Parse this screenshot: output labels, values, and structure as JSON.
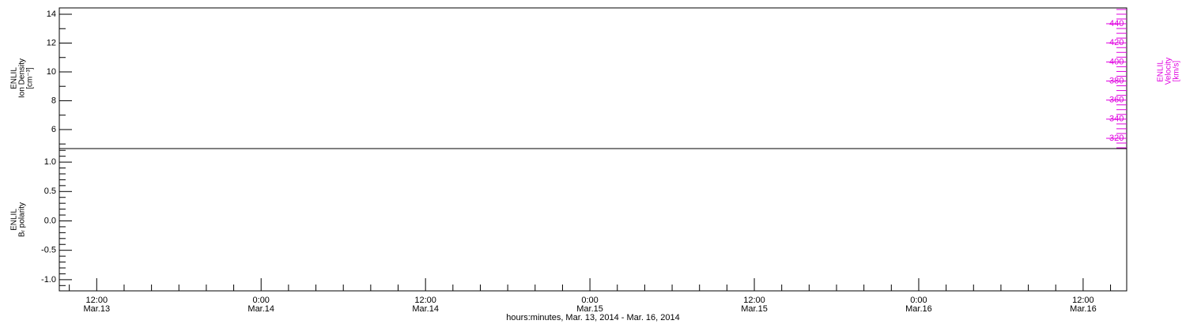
{
  "chart_data": [
    {
      "type": "line",
      "ylabel": [
        "ENLIL",
        "Ion Density",
        "[cm⁻³]"
      ],
      "ylim": [
        4.68,
        14.44
      ],
      "yticks": [
        6,
        8,
        10,
        12,
        14
      ],
      "y2label": [
        "ENLIL",
        "Velocity",
        "[km/s]"
      ],
      "y2color": "#e000e0",
      "y2lim": [
        309.2,
        456.6
      ],
      "y2ticks": [
        320,
        340,
        360,
        380,
        400,
        420,
        440
      ],
      "xlim": [
        9.27,
        87.18
      ]
    },
    {
      "type": "line",
      "ylabel": [
        "ENLIL",
        "Bᵣ polarity"
      ],
      "ylim": [
        -1.19,
        1.23
      ],
      "yticks": [
        {
          "value": -1,
          "label": "-1.0"
        },
        -0.5,
        {
          "value": 0,
          "label": "0.0"
        },
        0.5,
        {
          "value": 1,
          "label": "1.0"
        }
      ],
      "xlim": [
        9.27,
        87.18
      ],
      "xticks": [
        {
          "value": 12,
          "label": "12:00 Mar.13"
        },
        {
          "value": 24,
          "label": "0:00 Mar.14"
        },
        {
          "value": 36,
          "label": "12:00 Mar.14"
        },
        {
          "value": 48,
          "label": "0:00 Mar.15"
        },
        {
          "value": 60,
          "label": "12:00 Mar.15"
        },
        {
          "value": 72,
          "label": "0:00 Mar.16"
        },
        {
          "value": 84,
          "label": "12:00 Mar.16"
        }
      ],
      "xlabel": "hours:minutes, Mar. 13, 2014 - Mar. 16, 2014"
    }
  ]
}
